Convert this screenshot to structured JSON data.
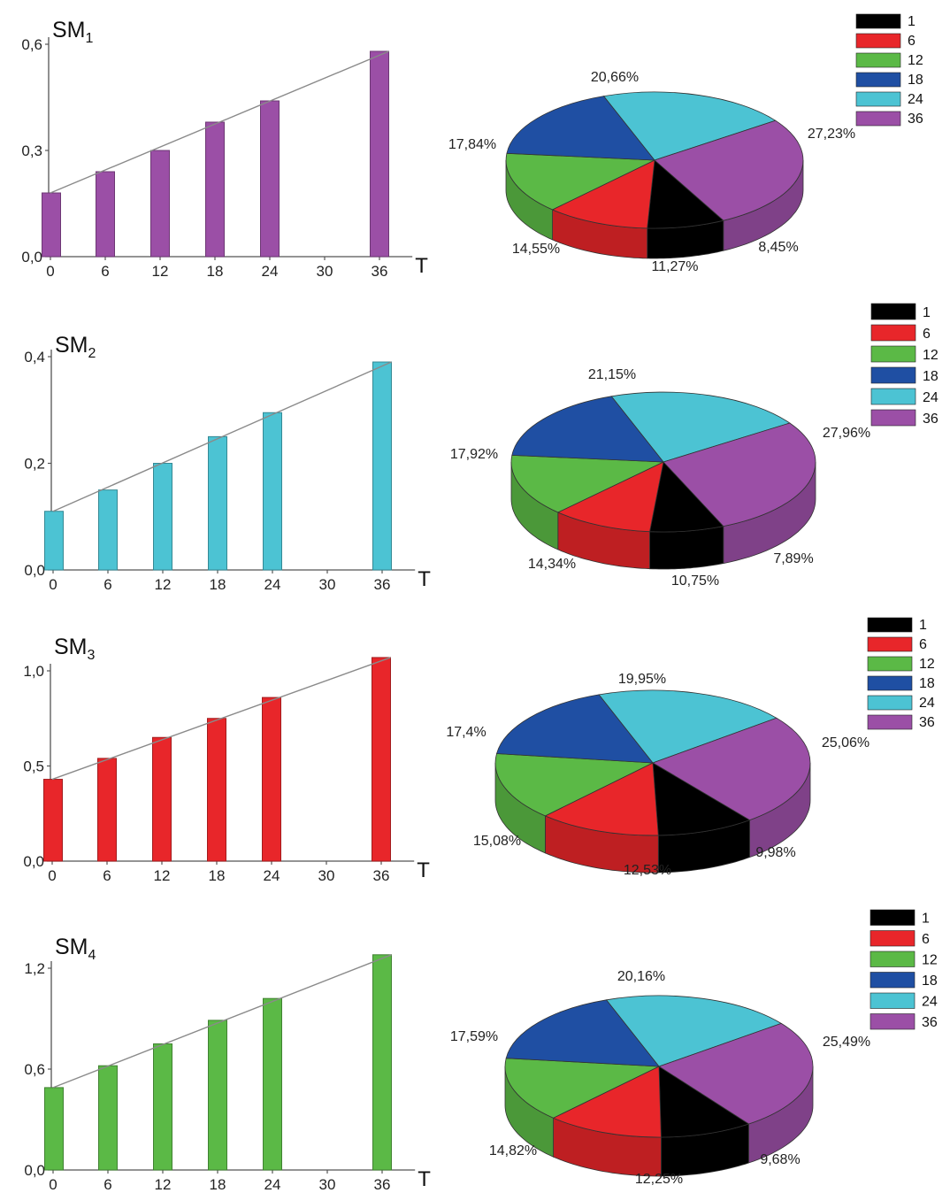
{
  "chart_data": [
    {
      "type": "bar",
      "panel_label": "SM",
      "panel_subscript": "1",
      "x_label": "T",
      "x_ticks": [
        "0",
        "6",
        "12",
        "18",
        "24",
        "30",
        "36"
      ],
      "y_ticks": [
        "0,0",
        "0,3",
        "0,6"
      ],
      "ylim": [
        0,
        0.6
      ],
      "x": [
        0,
        6,
        12,
        18,
        24,
        36
      ],
      "values": [
        0.18,
        0.24,
        0.3,
        0.38,
        0.44,
        0.58
      ],
      "trend_line": [
        [
          0,
          0.18
        ],
        [
          36,
          0.58
        ]
      ],
      "bar_color": "#9b4fa6"
    },
    {
      "type": "pie",
      "style": "3d",
      "legend": [
        "1",
        "6",
        "12",
        "18",
        "24",
        "36"
      ],
      "colors": [
        "#000000",
        "#e8262a",
        "#5bb946",
        "#1f4fa3",
        "#4cc3d3",
        "#9b4fa6"
      ],
      "values": [
        8.45,
        11.27,
        14.55,
        17.84,
        20.66,
        27.23
      ],
      "labels": [
        "8,45%",
        "11,27%",
        "14,55%",
        "17,84%",
        "20,66%",
        "27,23%"
      ]
    },
    {
      "type": "bar",
      "panel_label": "SM",
      "panel_subscript": "2",
      "x_label": "T",
      "x_ticks": [
        "0",
        "6",
        "12",
        "18",
        "24",
        "30",
        "36"
      ],
      "y_ticks": [
        "0,0",
        "0,2",
        "0,4"
      ],
      "ylim": [
        0,
        0.4
      ],
      "x": [
        0,
        6,
        12,
        18,
        24,
        36
      ],
      "values": [
        0.11,
        0.15,
        0.2,
        0.25,
        0.295,
        0.39
      ],
      "trend_line": [
        [
          0,
          0.11
        ],
        [
          36,
          0.39
        ]
      ],
      "bar_color": "#4cc3d3"
    },
    {
      "type": "pie",
      "style": "3d",
      "legend": [
        "1",
        "6",
        "12",
        "18",
        "24",
        "36"
      ],
      "colors": [
        "#000000",
        "#e8262a",
        "#5bb946",
        "#1f4fa3",
        "#4cc3d3",
        "#9b4fa6"
      ],
      "values": [
        7.89,
        10.75,
        14.34,
        17.92,
        21.15,
        27.96
      ],
      "labels": [
        "7,89%",
        "10,75%",
        "14,34%",
        "17,92%",
        "21,15%",
        "27,96%"
      ]
    },
    {
      "type": "bar",
      "panel_label": "SM",
      "panel_subscript": "3",
      "x_label": "T",
      "x_ticks": [
        "0",
        "6",
        "12",
        "18",
        "24",
        "30",
        "36"
      ],
      "y_ticks": [
        "0,0",
        "0,5",
        "1,0"
      ],
      "ylim": [
        0,
        1.0
      ],
      "x": [
        0,
        6,
        12,
        18,
        24,
        36
      ],
      "values": [
        0.43,
        0.54,
        0.65,
        0.75,
        0.86,
        1.07
      ],
      "trend_line": [
        [
          0,
          0.43
        ],
        [
          36,
          1.07
        ]
      ],
      "bar_color": "#e8262a"
    },
    {
      "type": "pie",
      "style": "3d",
      "legend": [
        "1",
        "6",
        "12",
        "18",
        "24",
        "36"
      ],
      "colors": [
        "#000000",
        "#e8262a",
        "#5bb946",
        "#1f4fa3",
        "#4cc3d3",
        "#9b4fa6"
      ],
      "values": [
        9.98,
        12.53,
        15.08,
        17.4,
        19.95,
        25.06
      ],
      "labels": [
        "9,98%",
        "12,53%",
        "15,08%",
        "17,4%",
        "19,95%",
        "25,06%"
      ]
    },
    {
      "type": "bar",
      "panel_label": "SM",
      "panel_subscript": "4",
      "x_label": "T",
      "x_ticks": [
        "0",
        "6",
        "12",
        "18",
        "24",
        "30",
        "36"
      ],
      "y_ticks": [
        "0,0",
        "0,6",
        "1,2"
      ],
      "ylim": [
        0,
        1.2
      ],
      "x": [
        0,
        6,
        12,
        18,
        24,
        36
      ],
      "values": [
        0.49,
        0.62,
        0.75,
        0.89,
        1.02,
        1.28
      ],
      "trend_line": [
        [
          0,
          0.49
        ],
        [
          36,
          1.28
        ]
      ],
      "bar_color": "#5bb946"
    },
    {
      "type": "pie",
      "style": "3d",
      "legend": [
        "1",
        "6",
        "12",
        "18",
        "24",
        "36"
      ],
      "colors": [
        "#000000",
        "#e8262a",
        "#5bb946",
        "#1f4fa3",
        "#4cc3d3",
        "#9b4fa6"
      ],
      "values": [
        9.68,
        12.25,
        14.82,
        17.59,
        20.16,
        25.49
      ],
      "labels": [
        "9,68%",
        "12,25%",
        "14,82%",
        "17,59%",
        "20,16%",
        "25,49%"
      ]
    }
  ]
}
